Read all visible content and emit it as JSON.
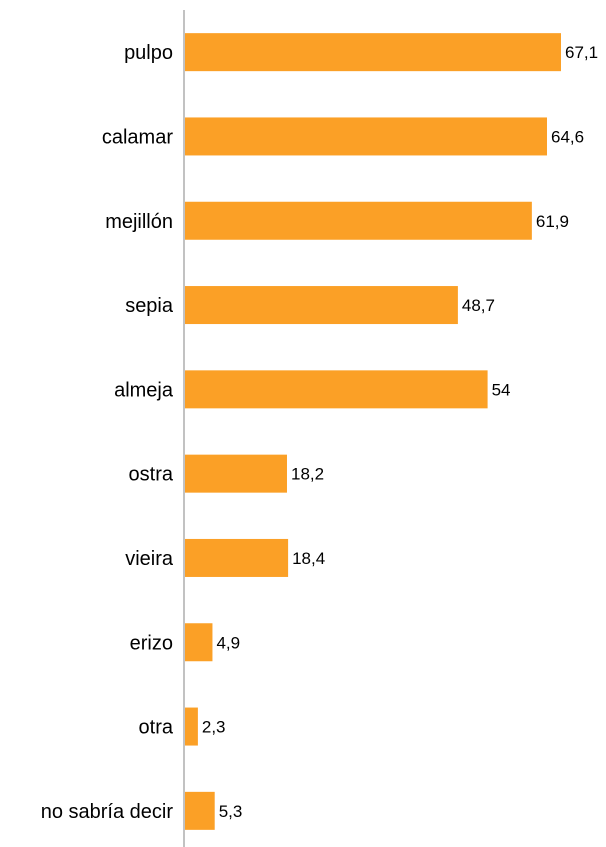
{
  "chart_data": {
    "type": "bar",
    "orientation": "horizontal",
    "categories": [
      "pulpo",
      "calamar",
      "mejillón",
      "sepia",
      "almeja",
      "ostra",
      "vieira",
      "erizo",
      "otra",
      "no sabría decir"
    ],
    "values": [
      67.1,
      64.6,
      61.9,
      48.7,
      54,
      18.2,
      18.4,
      4.9,
      2.3,
      5.3
    ],
    "value_labels": [
      "67,1",
      "64,6",
      "61,9",
      "48,7",
      "54",
      "18,2",
      "18,4",
      "4,9",
      "2,3",
      "5,3"
    ],
    "title": "",
    "xlabel": "",
    "ylabel": "",
    "xlim": [
      0,
      70
    ],
    "grid": false,
    "legend": "none",
    "bar_color": "#FBA026",
    "axis_color": "#999999"
  }
}
